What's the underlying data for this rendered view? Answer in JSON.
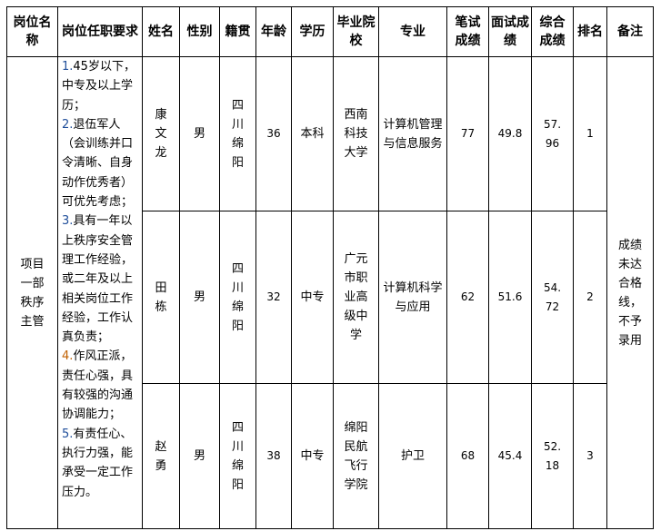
{
  "headers": [
    "岗位名称",
    "岗位任职要求",
    "姓名",
    "性别",
    "籍贯",
    "年龄",
    "学历",
    "毕业院校",
    "专业",
    "笔试成绩",
    "面试成绩",
    "综合成绩",
    "排名",
    "备注"
  ],
  "position": "项目一部秩序主管",
  "requirements": [
    {
      "num": "1.",
      "text": "45岁以下，中专及以上学历；"
    },
    {
      "num": "2.",
      "text": "退伍军人（会训练并口令清晰、自身动作优秀者）可优先考虑；"
    },
    {
      "num": "3.",
      "text": "具有一年以上秩序安全管理工作经验，或二年及以上相关岗位工作经验，工作认真负责；"
    },
    {
      "num": "4.",
      "text": "作风正派，责任心强，具有较强的沟通协调能力；"
    },
    {
      "num": "5.",
      "text": "有责任心、执行力强，能承受一定工作压力。"
    }
  ],
  "remark": "成绩未达合格线，不予录用",
  "rows": [
    {
      "name": "康文龙",
      "gender": "男",
      "origin": "四川绵阳",
      "age": "36",
      "edu": "本科",
      "school": "西南科技大学",
      "major": "计算机管理与信息服务",
      "written": "77",
      "interview": "49.8",
      "total": "57.96",
      "rank": "1"
    },
    {
      "name": "田栋",
      "gender": "男",
      "origin": "四川绵阳",
      "age": "32",
      "edu": "中专",
      "school": "广元市职业高级中学",
      "major": "计算机科学与应用",
      "written": "62",
      "interview": "51.6",
      "total": "54.72",
      "rank": "2"
    },
    {
      "name": "赵勇",
      "gender": "男",
      "origin": "四川绵阳",
      "age": "38",
      "edu": "中专",
      "school": "绵阳民航飞行学院",
      "major": "护卫",
      "written": "68",
      "interview": "45.4",
      "total": "52.18",
      "rank": "3"
    }
  ]
}
